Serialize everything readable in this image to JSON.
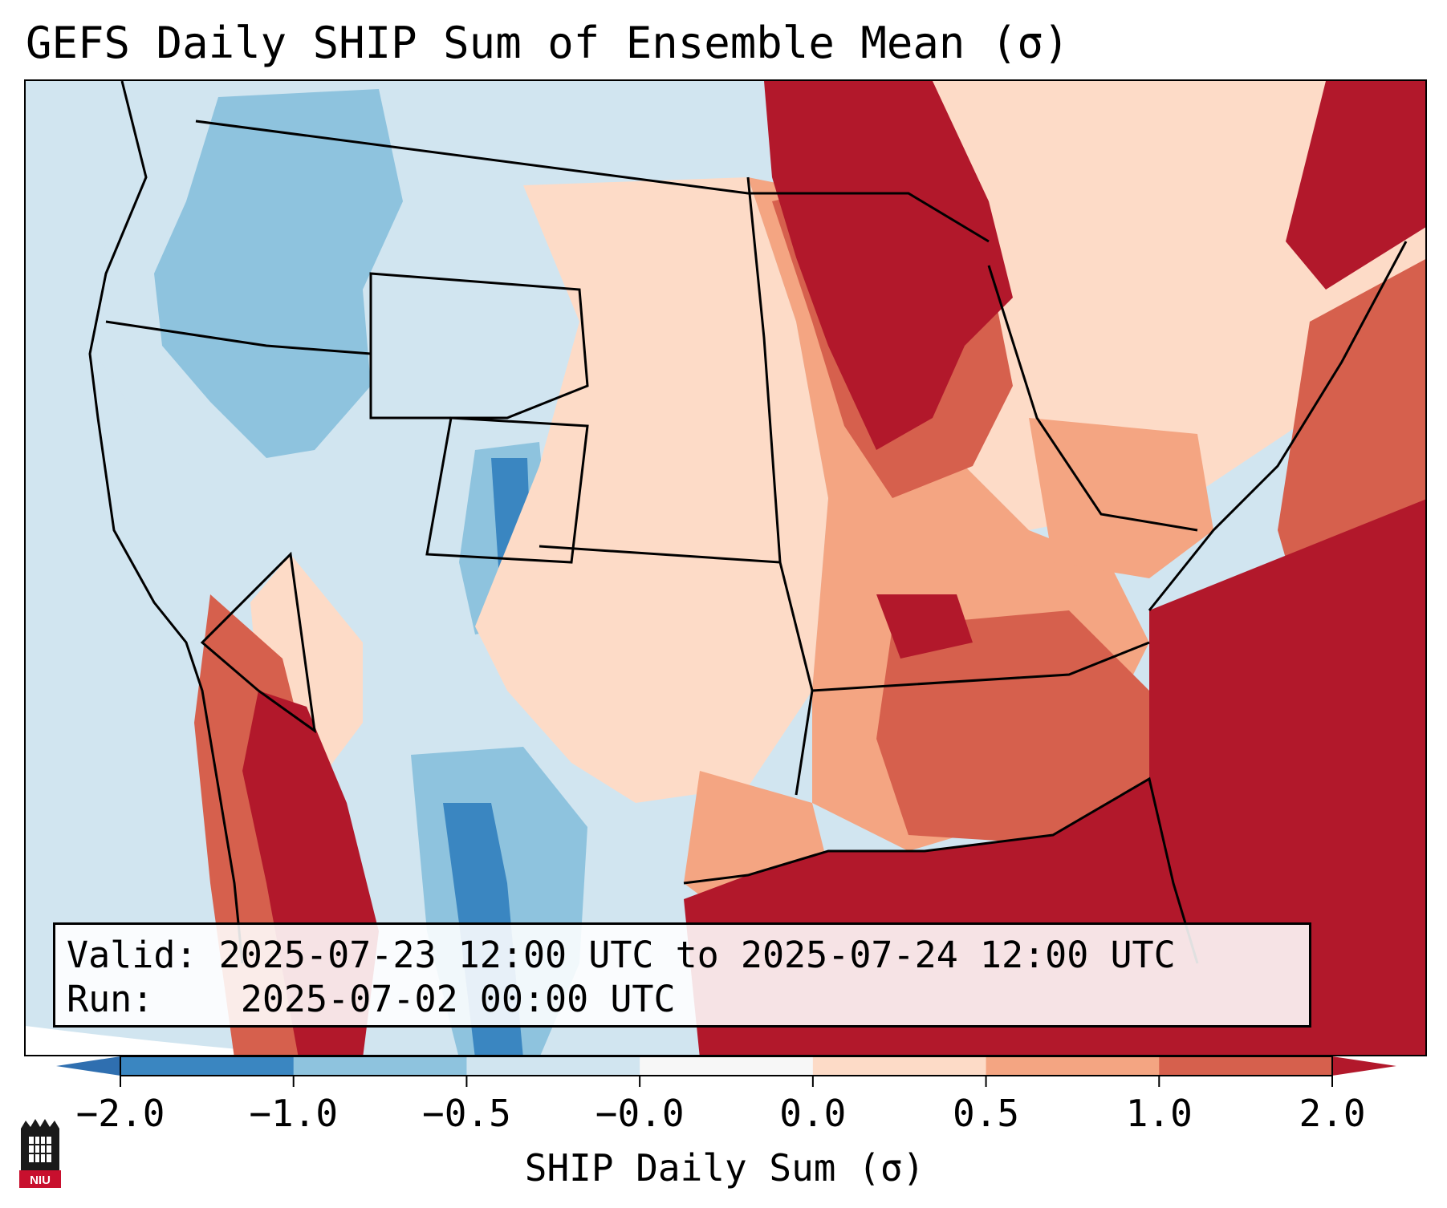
{
  "title": "GEFS Daily SHIP Sum of Ensemble Mean (σ)",
  "info": {
    "valid_label": "Valid:",
    "valid_value": "2025-07-23 12:00 UTC to 2025-07-24 12:00 UTC",
    "run_label": "Run:",
    "run_value": "2025-07-02 00:00 UTC"
  },
  "colorbar": {
    "label": "SHIP Daily Sum (σ)",
    "ticks": [
      "−2.0",
      "−1.0",
      "−0.5",
      "−0.0",
      "0.0",
      "0.5",
      "1.0",
      "2.0"
    ],
    "bins": [
      {
        "color": "#3a86c1"
      },
      {
        "color": "#8ec3de"
      },
      {
        "color": "#d1e5f0"
      },
      {
        "color": "#f7f7f7"
      },
      {
        "color": "#fddbc7"
      },
      {
        "color": "#f4a582"
      },
      {
        "color": "#d6604d"
      }
    ],
    "under_color": "#2f6fb0",
    "over_color": "#b2182b"
  },
  "map": {
    "colors": {
      "strong_warm": "#b2182b",
      "warm": "#d6604d",
      "mild_warm": "#f4a582",
      "slight_warm": "#fddbc7",
      "slight_cool": "#d1e5f0",
      "cool": "#8ec3de",
      "strong_cool": "#3a86c1"
    }
  },
  "logo": {
    "text": "NIU",
    "color": "#c8102e"
  }
}
